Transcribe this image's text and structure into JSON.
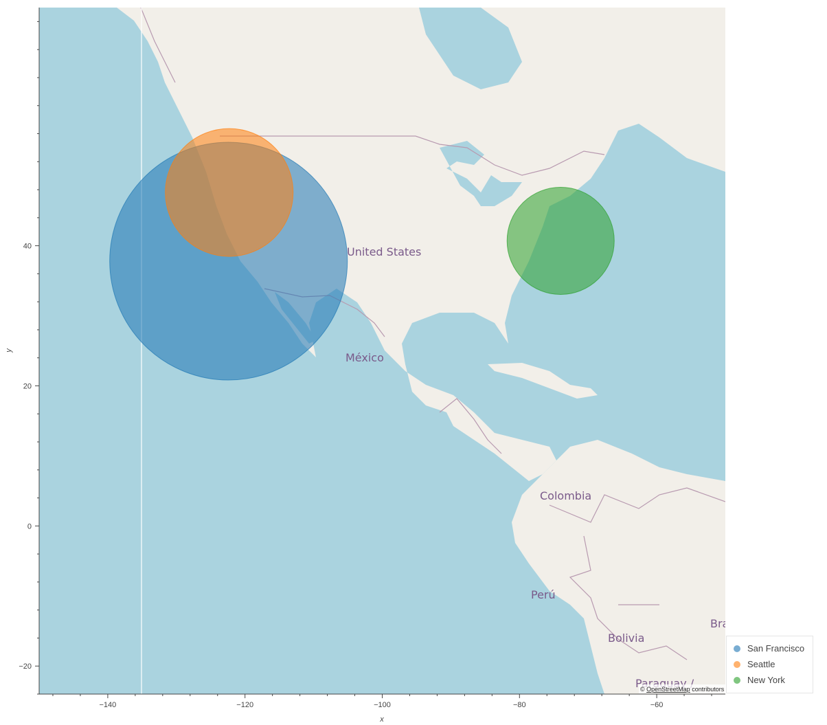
{
  "attribution": {
    "prefix": "© ",
    "link": "OpenStreetMap",
    "suffix": " contributors"
  },
  "map_labels": [
    {
      "key": "united_states",
      "text": "United States"
    },
    {
      "key": "mexico",
      "text": "México"
    },
    {
      "key": "colombia",
      "text": "Colombia"
    },
    {
      "key": "peru",
      "text": "Perú"
    },
    {
      "key": "bolivia",
      "text": "Bolivia"
    },
    {
      "key": "brazil",
      "text": "Bra"
    },
    {
      "key": "paraguay",
      "text": "Paraguay /"
    }
  ],
  "colors": {
    "ocean": "#aad3df",
    "land": "#f2efe9",
    "border": "#b89ab0",
    "label": "#7a5a8a"
  },
  "chart_data": {
    "type": "scatter",
    "xlabel": "x",
    "ylabel": "y",
    "xlim": [
      -150,
      -50
    ],
    "ylim": [
      -24,
      74
    ],
    "x_ticks": [
      -140,
      -120,
      -100,
      -80,
      -60
    ],
    "y_ticks": [
      -20,
      0,
      20,
      40
    ],
    "legend_position": "bottom-right",
    "series": [
      {
        "name": "San Francisco",
        "x": -122.4,
        "y": 37.8,
        "color": "#1f77b4"
      },
      {
        "name": "Seattle",
        "x": -122.3,
        "y": 47.6,
        "color": "#ff7f0e"
      },
      {
        "name": "New York",
        "x": -74.0,
        "y": 40.7,
        "color": "#2ca02c"
      }
    ]
  }
}
